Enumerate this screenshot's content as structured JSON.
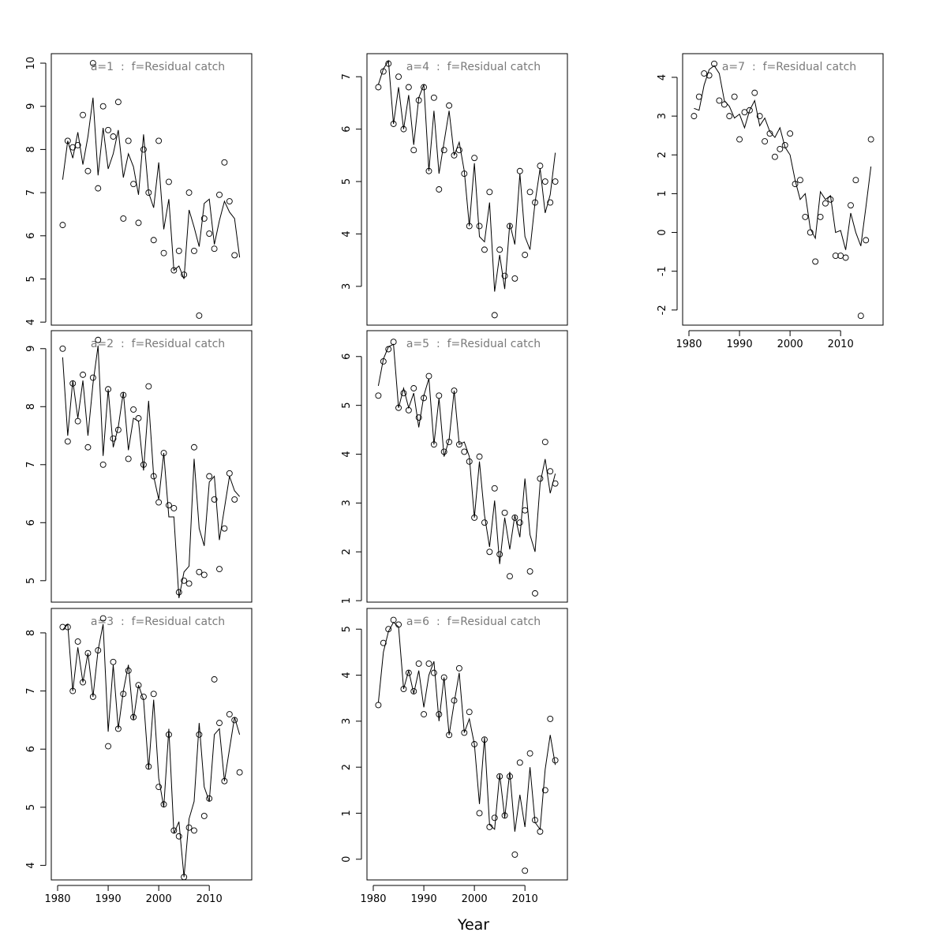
{
  "xlabel": "Year",
  "chart_data": [
    {
      "type": "line",
      "title": "a=1  :  f=Residual catch",
      "x": [
        1981,
        1982,
        1983,
        1984,
        1985,
        1986,
        1987,
        1988,
        1989,
        1990,
        1991,
        1992,
        1993,
        1994,
        1995,
        1996,
        1997,
        1998,
        1999,
        2000,
        2001,
        2002,
        2003,
        2004,
        2005,
        2006,
        2007,
        2008,
        2009,
        2010,
        2011,
        2012,
        2013,
        2014,
        2015,
        2016
      ],
      "xlim": [
        1978.75,
        2018.4
      ],
      "ylim": [
        3.93,
        10.22
      ],
      "yticks": [
        4,
        5,
        6,
        7,
        8,
        9,
        10
      ],
      "series": [
        {
          "mode": "points",
          "color": "#000000",
          "values": [
            6.25,
            8.2,
            8.05,
            8.1,
            8.8,
            7.5,
            10.0,
            7.1,
            9.0,
            8.45,
            8.3,
            9.1,
            6.4,
            8.2,
            7.2,
            6.3,
            8.0,
            7.0,
            5.9,
            8.2,
            5.6,
            7.25,
            5.2,
            5.65,
            5.1,
            7.0,
            5.65,
            4.15,
            6.4,
            6.05,
            5.7,
            6.95,
            7.7,
            6.8,
            5.55,
            null
          ]
        },
        {
          "mode": "line",
          "color": "#000000",
          "values": [
            7.3,
            8.2,
            7.8,
            8.4,
            7.65,
            8.3,
            9.2,
            7.4,
            8.5,
            7.55,
            7.9,
            8.45,
            7.35,
            7.9,
            7.6,
            6.95,
            8.35,
            7.0,
            6.65,
            7.7,
            6.15,
            6.85,
            5.2,
            5.3,
            5.0,
            6.6,
            6.2,
            5.75,
            6.75,
            6.85,
            5.8,
            6.35,
            6.8,
            6.55,
            6.4,
            5.5
          ]
        }
      ]
    },
    {
      "type": "line",
      "title": "a=2  :  f=Residual catch",
      "x": [
        1981,
        1982,
        1983,
        1984,
        1985,
        1986,
        1987,
        1988,
        1989,
        1990,
        1991,
        1992,
        1993,
        1994,
        1995,
        1996,
        1997,
        1998,
        1999,
        2000,
        2001,
        2002,
        2003,
        2004,
        2005,
        2006,
        2007,
        2008,
        2009,
        2010,
        2011,
        2012,
        2013,
        2014,
        2015,
        2016
      ],
      "xlim": [
        1978.75,
        2018.4
      ],
      "ylim": [
        4.63,
        9.31
      ],
      "yticks": [
        5,
        6,
        7,
        8,
        9
      ],
      "series": [
        {
          "mode": "points",
          "color": "#000000",
          "values": [
            9.0,
            7.4,
            8.4,
            7.75,
            8.55,
            7.3,
            8.5,
            9.15,
            7.0,
            8.3,
            7.45,
            7.6,
            8.2,
            7.1,
            7.95,
            7.8,
            7.0,
            8.35,
            6.8,
            6.35,
            7.2,
            6.3,
            6.25,
            4.8,
            5.0,
            4.95,
            7.3,
            5.15,
            5.1,
            6.8,
            6.4,
            5.2,
            5.9,
            6.85,
            6.4,
            null
          ]
        },
        {
          "mode": "line",
          "color": "#000000",
          "values": [
            8.85,
            7.5,
            8.45,
            7.8,
            8.45,
            7.5,
            8.4,
            9.05,
            7.15,
            8.3,
            7.3,
            7.65,
            8.25,
            7.25,
            7.8,
            7.75,
            6.9,
            8.1,
            6.8,
            6.4,
            7.2,
            6.1,
            6.1,
            4.7,
            5.15,
            5.25,
            7.1,
            5.9,
            5.6,
            6.7,
            6.8,
            5.7,
            6.25,
            6.8,
            6.55,
            6.45
          ]
        }
      ]
    },
    {
      "type": "line",
      "title": "a=3  :  f=Residual catch",
      "x": [
        1981,
        1982,
        1983,
        1984,
        1985,
        1986,
        1987,
        1988,
        1989,
        1990,
        1991,
        1992,
        1993,
        1994,
        1995,
        1996,
        1997,
        1998,
        1999,
        2000,
        2001,
        2002,
        2003,
        2004,
        2005,
        2006,
        2007,
        2008,
        2009,
        2010,
        2011,
        2012,
        2013,
        2014,
        2015,
        2016
      ],
      "xlim": [
        1978.75,
        2018.4
      ],
      "ylim": [
        3.75,
        8.42
      ],
      "yticks": [
        4,
        5,
        6,
        7,
        8
      ],
      "xticks": [
        1980,
        1990,
        2000,
        2010
      ],
      "series": [
        {
          "mode": "points",
          "color": "#000000",
          "values": [
            8.1,
            8.1,
            7.0,
            7.85,
            7.15,
            7.65,
            6.9,
            7.7,
            8.25,
            6.05,
            7.5,
            6.35,
            6.95,
            7.35,
            6.55,
            7.1,
            6.9,
            5.7,
            6.95,
            5.35,
            5.05,
            6.25,
            4.6,
            4.5,
            3.8,
            4.65,
            4.6,
            6.25,
            4.85,
            5.15,
            7.2,
            6.45,
            5.45,
            6.6,
            6.5,
            5.6
          ]
        },
        {
          "mode": "line",
          "color": "#000000",
          "values": [
            8.05,
            8.15,
            7.0,
            7.75,
            7.15,
            7.65,
            6.9,
            7.7,
            8.15,
            6.3,
            7.45,
            6.35,
            7.0,
            7.45,
            6.5,
            7.1,
            6.85,
            5.65,
            6.85,
            5.5,
            5.0,
            6.35,
            4.55,
            4.75,
            3.8,
            4.8,
            5.1,
            6.45,
            5.35,
            5.1,
            6.25,
            6.35,
            5.45,
            6.0,
            6.55,
            6.25
          ]
        }
      ]
    },
    {
      "type": "line",
      "title": "a=4  :  f=Residual catch",
      "x": [
        1981,
        1982,
        1983,
        1984,
        1985,
        1986,
        1987,
        1988,
        1989,
        1990,
        1991,
        1992,
        1993,
        1994,
        1995,
        1996,
        1997,
        1998,
        1999,
        2000,
        2001,
        2002,
        2003,
        2004,
        2005,
        2006,
        2007,
        2008,
        2009,
        2010,
        2011,
        2012,
        2013,
        2014,
        2015,
        2016
      ],
      "xlim": [
        1978.75,
        2018.4
      ],
      "ylim": [
        2.26,
        7.44
      ],
      "yticks": [
        3,
        4,
        5,
        6,
        7
      ],
      "series": [
        {
          "mode": "points",
          "color": "#000000",
          "values": [
            6.8,
            7.1,
            7.25,
            6.1,
            7.0,
            6.0,
            6.8,
            5.6,
            6.55,
            6.8,
            5.2,
            6.6,
            4.85,
            5.6,
            6.45,
            5.5,
            5.6,
            5.15,
            4.15,
            5.45,
            4.15,
            3.7,
            4.8,
            2.45,
            3.7,
            3.2,
            4.15,
            3.15,
            5.2,
            3.6,
            4.8,
            4.6,
            5.3,
            5.0,
            4.6,
            5.0
          ]
        },
        {
          "mode": "line",
          "color": "#000000",
          "values": [
            6.85,
            7.15,
            7.3,
            6.1,
            6.8,
            6.0,
            6.65,
            5.7,
            6.6,
            6.85,
            5.2,
            6.35,
            5.15,
            5.75,
            6.35,
            5.5,
            5.75,
            5.2,
            4.15,
            5.35,
            3.95,
            3.85,
            4.6,
            2.9,
            3.6,
            2.95,
            4.2,
            3.8,
            5.15,
            3.95,
            3.7,
            4.6,
            5.25,
            4.4,
            4.75,
            5.55
          ]
        }
      ]
    },
    {
      "type": "line",
      "title": "a=5  :  f=Residual catch",
      "x": [
        1981,
        1982,
        1983,
        1984,
        1985,
        1986,
        1987,
        1988,
        1989,
        1990,
        1991,
        1992,
        1993,
        1994,
        1995,
        1996,
        1997,
        1998,
        1999,
        2000,
        2001,
        2002,
        2003,
        2004,
        2005,
        2006,
        2007,
        2008,
        2009,
        2010,
        2011,
        2012,
        2013,
        2014,
        2015,
        2016
      ],
      "xlim": [
        1978.75,
        2018.4
      ],
      "ylim": [
        0.97,
        6.53
      ],
      "yticks": [
        1,
        2,
        3,
        4,
        5,
        6
      ],
      "series": [
        {
          "mode": "points",
          "color": "#000000",
          "values": [
            5.2,
            5.9,
            6.15,
            6.3,
            4.95,
            5.25,
            4.9,
            5.35,
            4.75,
            5.15,
            5.6,
            4.2,
            5.2,
            4.05,
            4.25,
            5.3,
            4.2,
            4.05,
            3.85,
            2.7,
            3.95,
            2.6,
            2.0,
            3.3,
            1.95,
            2.8,
            1.5,
            2.7,
            2.6,
            2.85,
            1.6,
            1.15,
            3.5,
            4.25,
            3.65,
            3.4
          ]
        },
        {
          "mode": "line",
          "color": "#000000",
          "values": [
            5.4,
            5.95,
            6.2,
            6.25,
            4.95,
            5.35,
            4.95,
            5.25,
            4.55,
            5.2,
            5.55,
            4.2,
            5.15,
            3.95,
            4.3,
            5.3,
            4.2,
            4.25,
            3.95,
            2.7,
            3.85,
            2.75,
            2.1,
            3.05,
            1.75,
            2.7,
            2.05,
            2.75,
            2.3,
            3.5,
            2.35,
            2.0,
            3.4,
            3.9,
            3.2,
            3.6
          ]
        }
      ]
    },
    {
      "type": "line",
      "title": "a=6  :  f=Residual catch",
      "x": [
        1981,
        1982,
        1983,
        1984,
        1985,
        1986,
        1987,
        1988,
        1989,
        1990,
        1991,
        1992,
        1993,
        1994,
        1995,
        1996,
        1997,
        1998,
        1999,
        2000,
        2001,
        2002,
        2003,
        2004,
        2005,
        2006,
        2007,
        2008,
        2009,
        2010,
        2011,
        2012,
        2013,
        2014,
        2015,
        2016
      ],
      "xlim": [
        1978.75,
        2018.4
      ],
      "ylim": [
        -0.45,
        5.45
      ],
      "yticks": [
        0,
        1,
        2,
        3,
        4,
        5
      ],
      "xticks": [
        1980,
        1990,
        2000,
        2010
      ],
      "series": [
        {
          "mode": "points",
          "color": "#000000",
          "values": [
            3.35,
            4.7,
            5.0,
            5.2,
            5.1,
            3.7,
            4.05,
            3.65,
            4.25,
            3.15,
            4.25,
            4.05,
            3.15,
            3.95,
            2.7,
            3.45,
            4.15,
            2.75,
            3.2,
            2.5,
            1.0,
            2.6,
            0.7,
            0.9,
            1.8,
            0.95,
            1.8,
            0.1,
            2.1,
            -0.25,
            2.3,
            0.85,
            0.6,
            1.5,
            3.05,
            2.15
          ]
        },
        {
          "mode": "line",
          "color": "#000000",
          "values": [
            3.4,
            4.5,
            4.95,
            5.15,
            5.05,
            3.7,
            4.1,
            3.6,
            4.1,
            3.3,
            4.0,
            4.3,
            3.0,
            3.95,
            2.7,
            3.4,
            4.05,
            2.75,
            3.05,
            2.5,
            1.2,
            2.65,
            0.75,
            0.65,
            1.85,
            0.9,
            1.9,
            0.6,
            1.4,
            0.7,
            2.0,
            0.8,
            0.65,
            1.95,
            2.7,
            2.05
          ]
        }
      ]
    },
    {
      "type": "line",
      "title": "a=7  :  f=Residual catch",
      "x": [
        1981,
        1982,
        1983,
        1984,
        1985,
        1986,
        1987,
        1988,
        1989,
        1990,
        1991,
        1992,
        1993,
        1994,
        1995,
        1996,
        1997,
        1998,
        1999,
        2000,
        2001,
        2002,
        2003,
        2004,
        2005,
        2006,
        2007,
        2008,
        2009,
        2010,
        2011,
        2012,
        2013,
        2014,
        2015,
        2016
      ],
      "xlim": [
        1978.75,
        2018.4
      ],
      "ylim": [
        -2.39,
        4.61
      ],
      "yticks": [
        -2,
        -1,
        0,
        1,
        2,
        3,
        4
      ],
      "xticks": [
        1980,
        1990,
        2000,
        2010
      ],
      "series": [
        {
          "mode": "points",
          "color": "#000000",
          "values": [
            3.0,
            3.5,
            4.1,
            4.05,
            4.35,
            3.4,
            3.3,
            3.0,
            3.5,
            2.4,
            3.1,
            3.15,
            3.6,
            3.0,
            2.35,
            2.55,
            1.95,
            2.15,
            2.25,
            2.55,
            1.25,
            1.35,
            0.4,
            0.0,
            -0.75,
            0.4,
            0.75,
            0.85,
            -0.6,
            -0.6,
            -0.65,
            0.7,
            1.35,
            -2.15,
            -0.2,
            2.4
          ]
        },
        {
          "mode": "line",
          "color": "#000000",
          "values": [
            3.2,
            3.15,
            3.8,
            4.2,
            4.3,
            4.1,
            3.4,
            3.25,
            2.95,
            3.05,
            2.7,
            3.15,
            3.4,
            2.75,
            2.95,
            2.6,
            2.45,
            2.7,
            2.2,
            2.0,
            1.35,
            0.85,
            1.0,
            0.1,
            -0.15,
            1.05,
            0.85,
            0.95,
            0.0,
            0.05,
            -0.45,
            0.5,
            0.0,
            -0.35,
            0.65,
            1.7
          ]
        }
      ]
    }
  ]
}
